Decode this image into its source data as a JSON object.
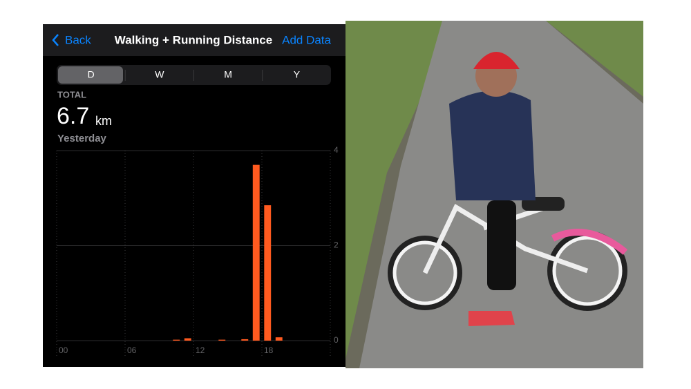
{
  "app": {
    "header": {
      "back": "Back",
      "title": "Walking + Running Distance",
      "action": "Add Data"
    },
    "segments": [
      "D",
      "W",
      "M",
      "Y"
    ],
    "summary": {
      "label": "TOTAL",
      "value": 6.7,
      "unit": "km",
      "period": "Yesterday"
    }
  },
  "chart_data": {
    "type": "bar",
    "x": [
      10,
      11,
      14,
      16,
      17,
      18,
      19
    ],
    "values": [
      0.02,
      0.05,
      0.02,
      0.03,
      3.7,
      2.85,
      0.07
    ],
    "color": "#ff5a1f",
    "xlim": [
      0,
      24
    ],
    "xticks": [
      {
        "value": 0,
        "label": "00"
      },
      {
        "value": 6,
        "label": "06"
      },
      {
        "value": 12,
        "label": "12"
      },
      {
        "value": 18,
        "label": "18"
      }
    ],
    "ylim": [
      0,
      4
    ],
    "yticks": [
      0,
      2,
      4
    ],
    "grid": true
  }
}
